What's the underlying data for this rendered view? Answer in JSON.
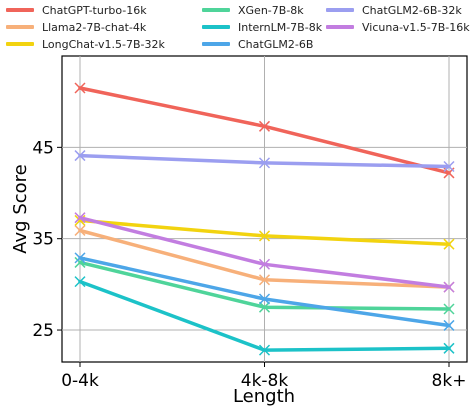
{
  "chart_data": {
    "type": "line",
    "title": "",
    "xlabel": "Length",
    "ylabel": "Avg Score",
    "categories": [
      "0-4k",
      "4k-8k",
      "8k+"
    ],
    "ylim": [
      21.5,
      55
    ],
    "yticks": [
      25,
      35,
      45
    ],
    "grid": true,
    "legend_position": "top",
    "series": [
      {
        "name": "ChatGPT-turbo-16k",
        "color": "#f0645a",
        "values": [
          51.5,
          47.3,
          42.2
        ]
      },
      {
        "name": "Llama2-7B-chat-4k",
        "color": "#f7b07a",
        "values": [
          35.9,
          30.5,
          29.7
        ]
      },
      {
        "name": "LongChat-v1.5-7B-32k",
        "color": "#f2d30f",
        "values": [
          37.0,
          35.3,
          34.4
        ]
      },
      {
        "name": "XGen-7B-8k",
        "color": "#4fd49a",
        "values": [
          32.4,
          27.5,
          27.3
        ]
      },
      {
        "name": "InternLM-7B-8k",
        "color": "#1cc2c8",
        "values": [
          30.3,
          22.8,
          23.0
        ]
      },
      {
        "name": "ChatGLM2-6B",
        "color": "#4da6e8",
        "values": [
          32.9,
          28.4,
          25.5
        ]
      },
      {
        "name": "ChatGLM2-6B-32k",
        "color": "#9b9ef0",
        "values": [
          44.1,
          43.3,
          42.9
        ]
      },
      {
        "name": "Vicuna-v1.5-7B-16k",
        "color": "#c27de0",
        "values": [
          37.3,
          32.2,
          29.7
        ]
      }
    ]
  }
}
